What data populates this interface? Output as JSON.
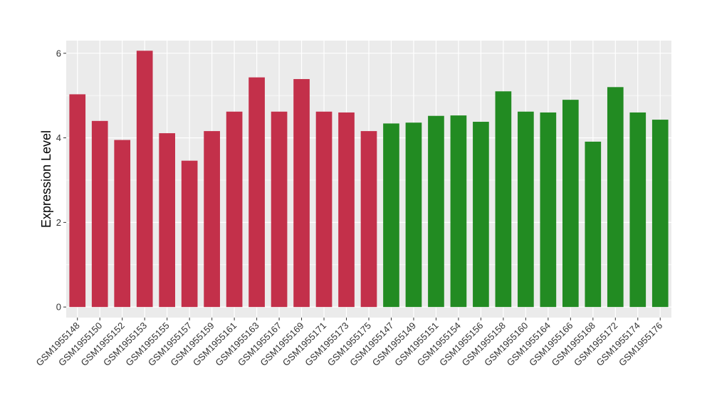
{
  "chart_data": {
    "type": "bar",
    "ylabel": "Expression Level",
    "xlabel": "",
    "ylim": [
      -0.25,
      6.3
    ],
    "yticks": [
      0,
      2,
      4,
      6
    ],
    "grid": true,
    "background": "#ebebeb",
    "categories": [
      "GSM1955148",
      "GSM1955150",
      "GSM1955152",
      "GSM1955153",
      "GSM1955155",
      "GSM1955157",
      "GSM1955159",
      "GSM1955161",
      "GSM1955163",
      "GSM1955167",
      "GSM1955169",
      "GSM1955171",
      "GSM1955173",
      "GSM1955175",
      "GSM1955147",
      "GSM1955149",
      "GSM1955151",
      "GSM1955154",
      "GSM1955156",
      "GSM1955158",
      "GSM1955160",
      "GSM1955164",
      "GSM1955166",
      "GSM1955168",
      "GSM1955172",
      "GSM1955174",
      "GSM1955176"
    ],
    "values": [
      5.03,
      4.4,
      3.95,
      6.06,
      4.11,
      3.46,
      4.16,
      4.62,
      5.43,
      4.62,
      5.39,
      4.62,
      4.6,
      4.16,
      4.34,
      4.36,
      4.52,
      4.53,
      4.38,
      5.1,
      4.62,
      4.6,
      4.9,
      3.91,
      5.2,
      4.6,
      4.43
    ],
    "bar_colors": [
      "#c3304a",
      "#c3304a",
      "#c3304a",
      "#c3304a",
      "#c3304a",
      "#c3304a",
      "#c3304a",
      "#c3304a",
      "#c3304a",
      "#c3304a",
      "#c3304a",
      "#c3304a",
      "#c3304a",
      "#c3304a",
      "#228b22",
      "#228b22",
      "#228b22",
      "#228b22",
      "#228b22",
      "#228b22",
      "#228b22",
      "#228b22",
      "#228b22",
      "#228b22",
      "#228b22",
      "#228b22",
      "#228b22"
    ]
  }
}
